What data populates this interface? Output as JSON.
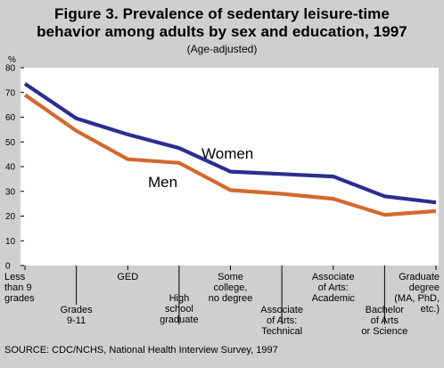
{
  "title_line1": "Figure 3.  Prevalence of sedentary leisure-time",
  "title_line2": "behavior among adults by sex and education, 1997",
  "subtitle": "(Age-adjusted)",
  "source": "SOURCE: CDC/NCHS, National Health Interview Survey, 1997",
  "colors": {
    "women": "#2b2d8f",
    "men": "#d2692e",
    "plot_bg": "#ffffff",
    "page_bg": "#cfcfcf"
  },
  "chart_data": {
    "type": "line",
    "title": "Figure 3.  Prevalence of sedentary leisure-time behavior among adults by sex and education, 1997",
    "ylabel": "%",
    "ylim": [
      0,
      80
    ],
    "yticks": [
      "0",
      "10",
      "20",
      "30",
      "40",
      "50",
      "60",
      "70",
      "80"
    ],
    "grid": false,
    "categories": [
      [
        "Less",
        "than 9",
        "grades"
      ],
      [
        "Grades",
        "9-11"
      ],
      [
        "GED"
      ],
      [
        "High",
        "school",
        "graduate"
      ],
      [
        "Some",
        "college,",
        "no degree"
      ],
      [
        "Associate",
        "of Arts:",
        "Technical"
      ],
      [
        "Associate",
        "of Arts:",
        "Academic"
      ],
      [
        "Bachelor",
        "of Arts",
        "or Science"
      ],
      [
        "Graduate",
        "degree",
        "(MA, PhD,",
        "etc.)"
      ]
    ],
    "series": [
      {
        "name": "Women",
        "values": [
          73.5,
          59.5,
          53,
          47.5,
          38,
          37,
          36,
          28,
          25.5
        ]
      },
      {
        "name": "Men",
        "values": [
          69,
          54.5,
          43,
          41.5,
          30.5,
          29,
          27,
          20.5,
          22
        ]
      }
    ]
  }
}
